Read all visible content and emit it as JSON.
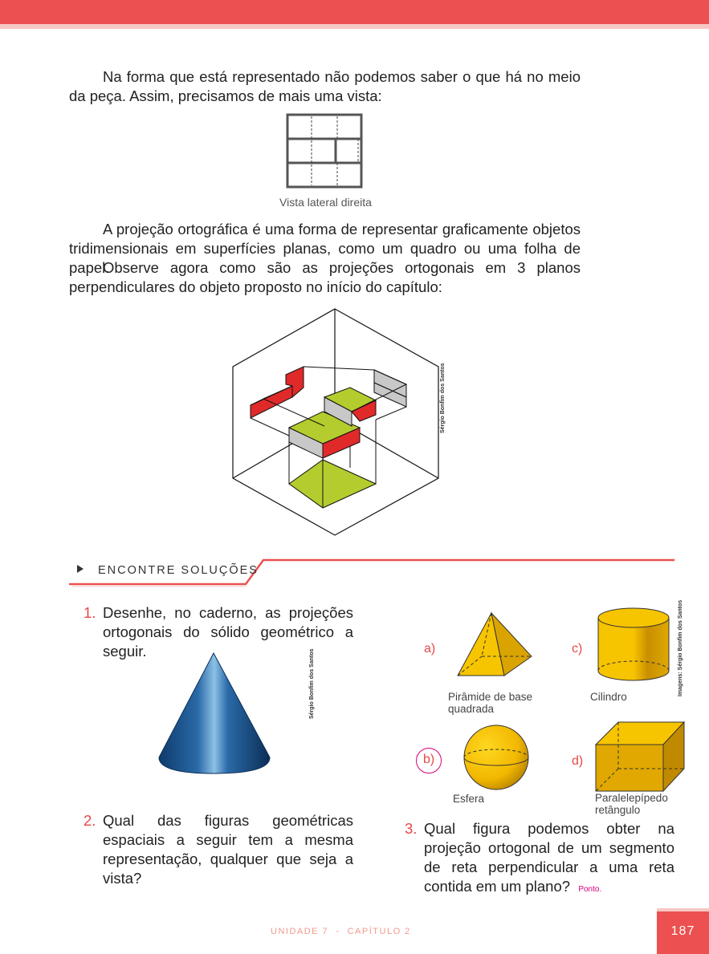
{
  "intro_paragraph": "Na forma que está representado não podemos saber o que há no meio da peça. Assim, precisamos de mais uma vista:",
  "side_view_caption": "Vista lateral direita",
  "paragraph_2": "A projeção ortográfica é uma forma de representar graficamente objetos tridimensionais em superfícies planas, como um quadro ou uma folha de papel.",
  "paragraph_3": "Observe agora como são as projeções ortogonais em 3 planos perpendiculares do objeto proposto no início do capítulo:",
  "illustration_credit": "Sérgio Bonfim dos Santos",
  "section": {
    "title": "ENCONTRE SOLUÇÕES"
  },
  "questions": [
    {
      "number": "1.",
      "text": "Desenhe, no caderno, as projeções ortogonais do sólido geométrico a seguir."
    },
    {
      "number": "2.",
      "text": "Qual das figuras geométricas espaciais a seguir tem a mesma representação, qualquer que seja a vista?"
    },
    {
      "number": "3.",
      "text": "Qual figura podemos obter na projeção ortogonal de um segmento de reta perpendicular a uma reta contida em um plano?",
      "answer": "Ponto."
    }
  ],
  "cone_credit": "Sérgio Bonfim dos Santos",
  "shapes_credit": "Imagens: Sérgio Bonfim dos Santos",
  "shapes": [
    {
      "label": "a)",
      "caption_line1": "Pirâmide de base",
      "caption_line2": "quadrada"
    },
    {
      "label": "b)",
      "caption_line1": "Esfera",
      "caption_line2": ""
    },
    {
      "label": "c)",
      "caption_line1": "Cilindro",
      "caption_line2": ""
    },
    {
      "label": "d)",
      "caption_line1": "Paralelepípedo",
      "caption_line2": "retângulo"
    }
  ],
  "footer": {
    "unit": "UNIDADE 7",
    "separator": "-",
    "chapter": "CAPÍTULO 2",
    "page": "187"
  },
  "colors": {
    "accent": "#ec5050",
    "accent_light": "#f6c8c4",
    "green": "#b5cc2e",
    "red_face": "#e02a2a",
    "gray_face": "#c8c8c8",
    "yellow": "#f7c400"
  }
}
